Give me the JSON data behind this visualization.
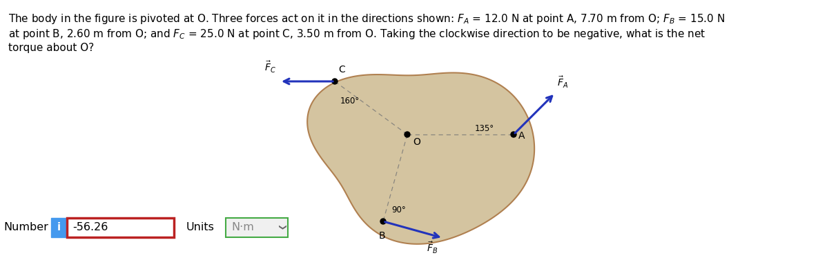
{
  "body_color": "#d4c4a0",
  "body_outline_color": "#b08050",
  "arrow_color": "#2233bb",
  "dashed_line_color": "#777777",
  "dot_color": "#000000",
  "answer_value": "-56.26",
  "units_value": "N·m",
  "number_label": "Number",
  "units_label": "Units",
  "info_box_color": "#4499ee",
  "answer_box_border_color": "#bb2222",
  "units_box_border_color": "#44aa44",
  "bg_color": "#ffffff",
  "text_color": "#000000",
  "fig_width": 11.85,
  "fig_height": 3.77,
  "line1": "The body in the figure is pivoted at O. Three forces act on it in the directions shown: $F_A$ = 12.0 N at point A, 7.70 m from O; $F_B$ = 15.0 N",
  "line2": "at point B, 2.60 m from O; and $F_C$ = 25.0 N at point C, 3.50 m from O. Taking the clockwise direction to be negative, what is the net",
  "line3": "torque about O?"
}
